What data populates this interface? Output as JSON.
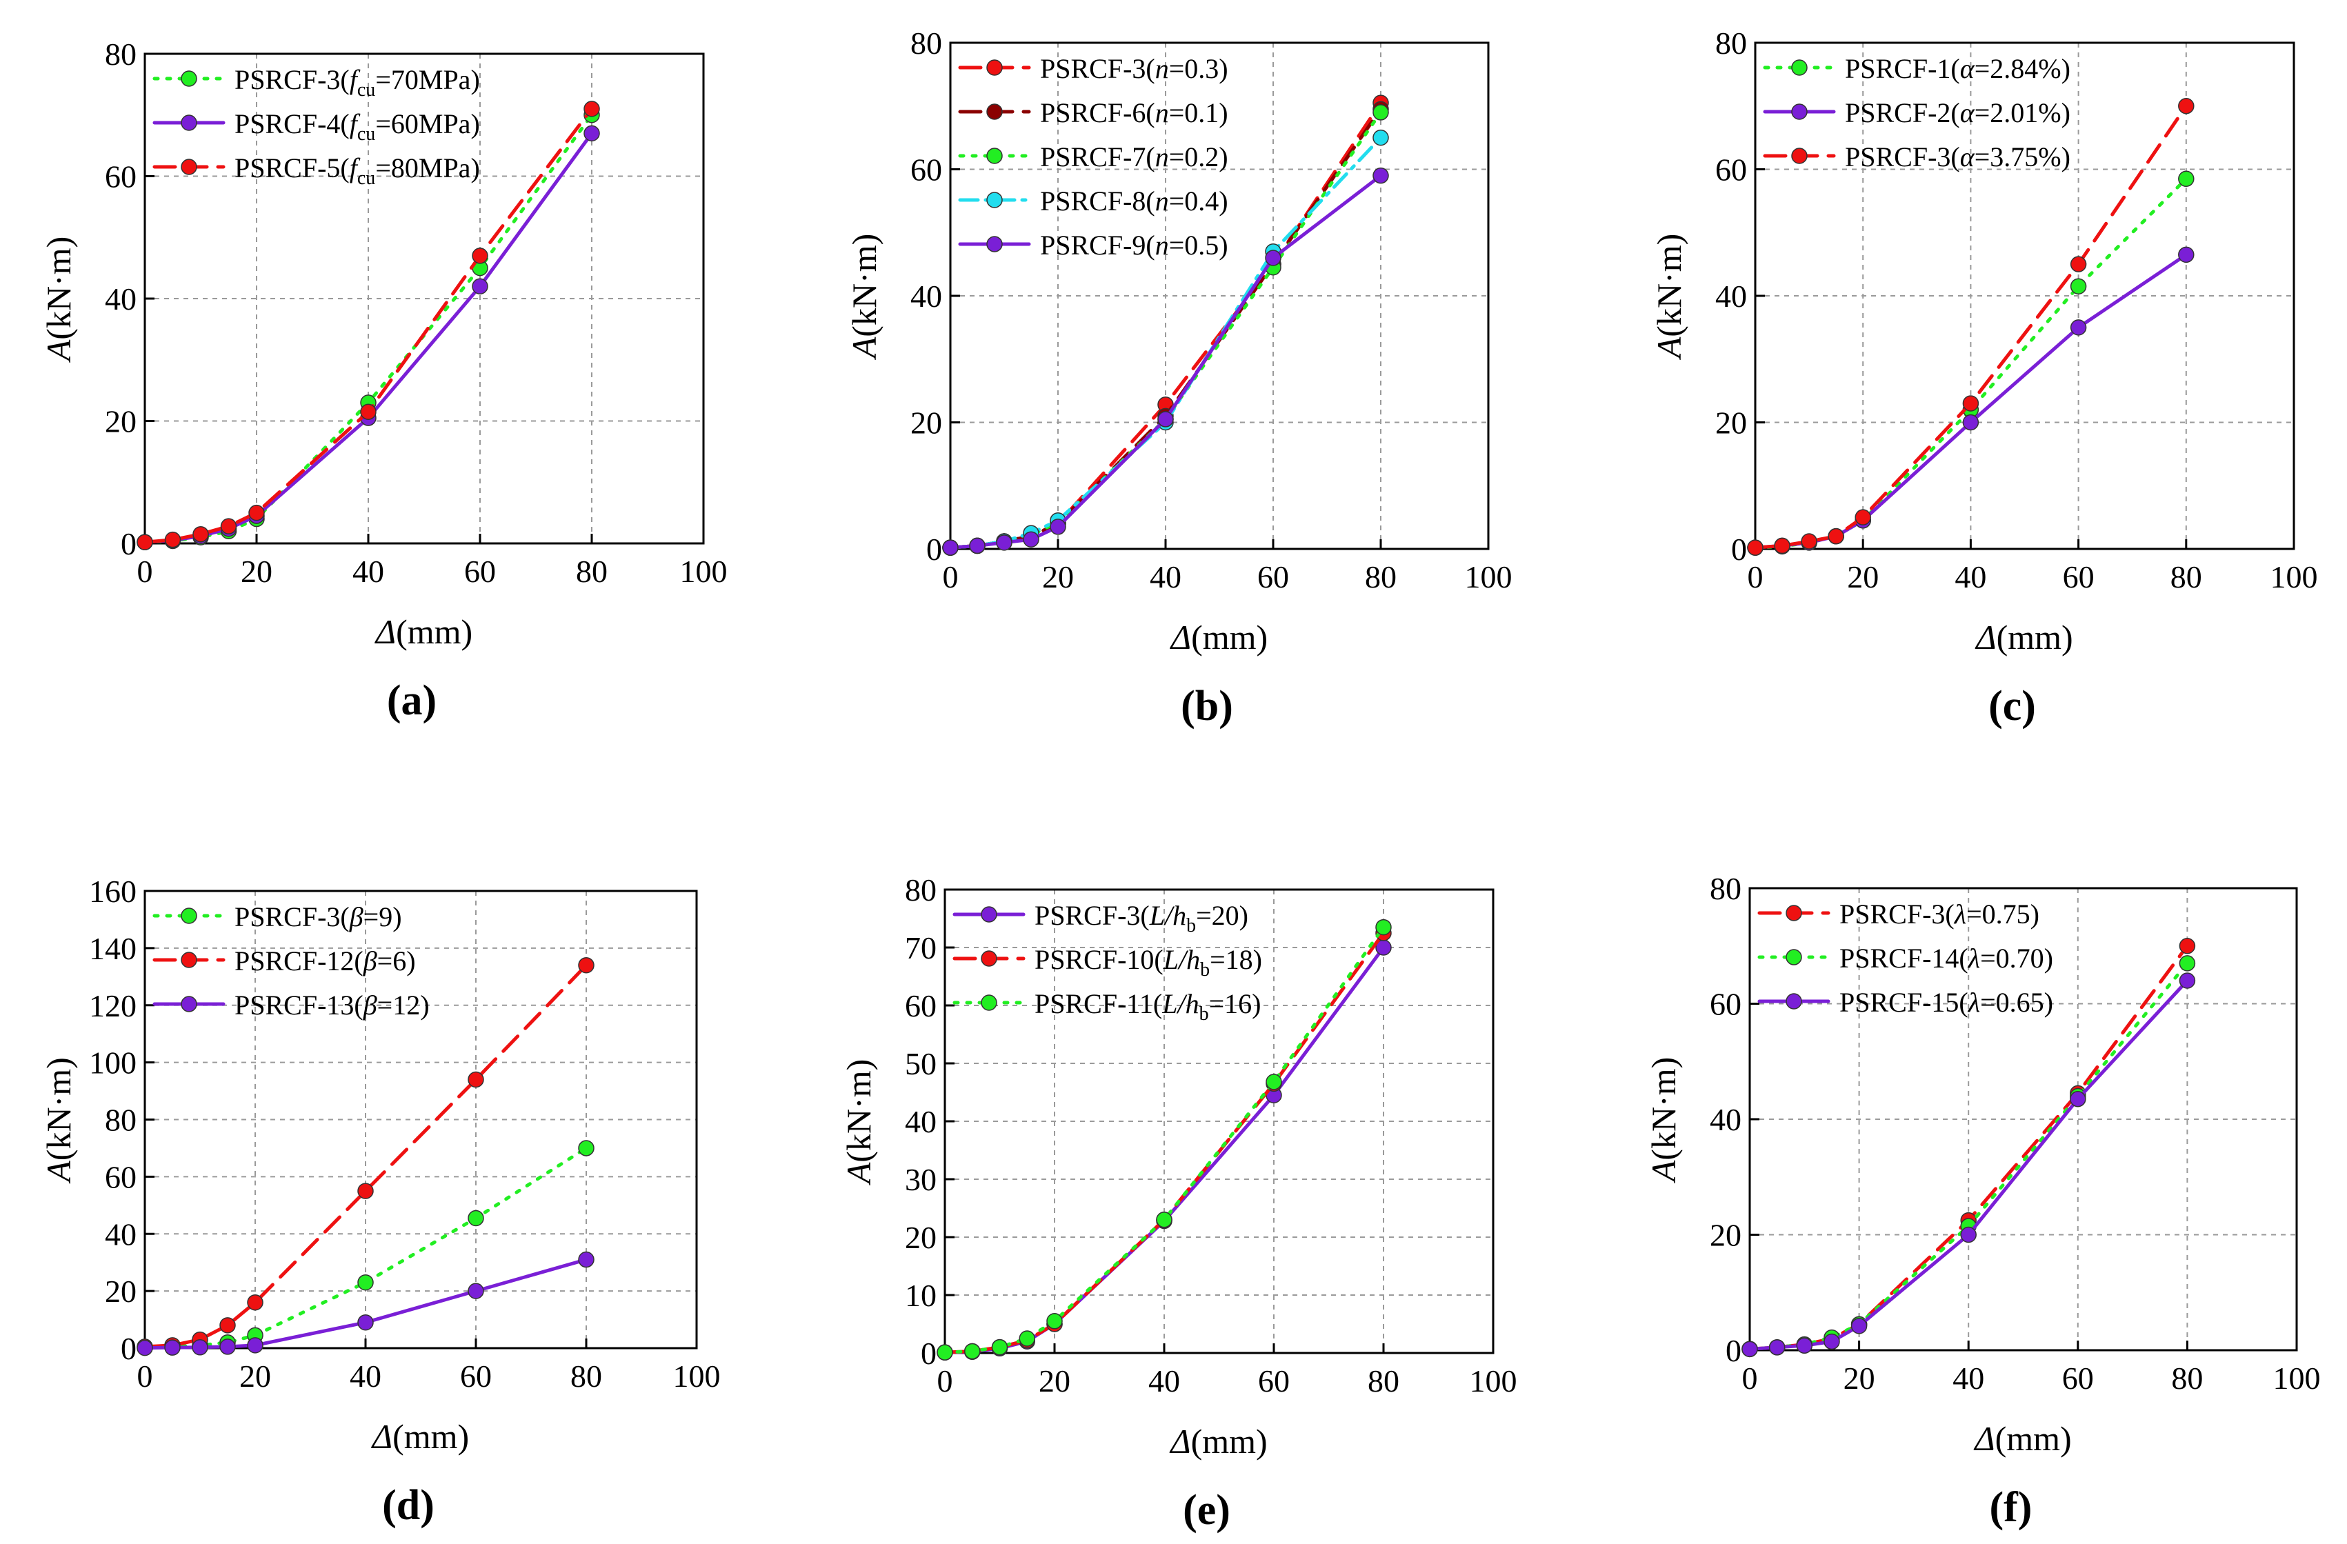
{
  "figure": {
    "x_axis_label": "Δ(mm)",
    "y_axis_label": "A(kN·m)",
    "y_axis_unit": "(kN·m)"
  },
  "chart_data": [
    {
      "panel": "(a)",
      "type": "line",
      "xlabel": "Δ(mm)",
      "ylabel": "A(kN·m)",
      "xlim": [
        0,
        100
      ],
      "ylim": [
        0,
        80
      ],
      "xticks": [
        0,
        20,
        40,
        60,
        80,
        100
      ],
      "yticks": [
        0,
        20,
        40,
        60,
        80
      ],
      "grid": true,
      "legend_position": "top-left",
      "x": [
        0,
        5,
        10,
        15,
        20,
        40,
        60,
        80
      ],
      "series": [
        {
          "name": "PSRCF-3(fcu=70MPa)",
          "legend_label": "PSRCF-3(",
          "legend_sym": "f",
          "legend_sub": "cu",
          "legend_rest": "=70MPa)",
          "color": "#22ee22",
          "dash": "dot",
          "values": [
            0.2,
            0.4,
            1.0,
            2.0,
            4.0,
            23.0,
            45.0,
            70.0
          ]
        },
        {
          "name": "PSRCF-4(fcu=60MPa)",
          "legend_label": "PSRCF-4(",
          "legend_sym": "f",
          "legend_sub": "cu",
          "legend_rest": "=60MPa)",
          "color": "#7a1fd6",
          "dash": "solid",
          "values": [
            0.2,
            0.5,
            1.2,
            2.4,
            4.5,
            20.5,
            42.0,
            67.0
          ]
        },
        {
          "name": "PSRCF-5(fcu=80MPa)",
          "legend_label": "PSRCF-5(",
          "legend_sym": "f",
          "legend_sub": "cu",
          "legend_rest": "=80MPa)",
          "color": "#ee1111",
          "dash": "dash",
          "values": [
            0.2,
            0.6,
            1.5,
            2.8,
            5.0,
            21.5,
            47.0,
            71.0
          ]
        }
      ]
    },
    {
      "panel": "(b)",
      "type": "line",
      "xlabel": "Δ(mm)",
      "ylabel": "A(kN·m)",
      "xlim": [
        0,
        100
      ],
      "ylim": [
        0,
        80
      ],
      "xticks": [
        0,
        20,
        40,
        60,
        80,
        100
      ],
      "yticks": [
        0,
        20,
        40,
        60,
        80
      ],
      "grid": true,
      "legend_position": "top-left",
      "x": [
        0,
        5,
        10,
        15,
        20,
        40,
        60,
        80
      ],
      "series": [
        {
          "name": "PSRCF-3(n=0.3)",
          "legend_label": "PSRCF-3(",
          "legend_sym": "n",
          "legend_sub": "",
          "legend_rest": "=0.3)",
          "color": "#ee1111",
          "dash": "dash",
          "values": [
            0.2,
            0.5,
            1.2,
            2.0,
            4.0,
            22.8,
            45.0,
            70.5
          ]
        },
        {
          "name": "PSRCF-6(n=0.1)",
          "legend_label": "PSRCF-6(",
          "legend_sym": "n",
          "legend_sub": "",
          "legend_rest": "=0.1)",
          "color": "#8b0000",
          "dash": "dash",
          "values": [
            0.2,
            0.5,
            1.2,
            2.0,
            4.0,
            21.0,
            45.0,
            69.5
          ]
        },
        {
          "name": "PSRCF-7(n=0.2)",
          "legend_label": "PSRCF-7(",
          "legend_sym": "n",
          "legend_sub": "",
          "legend_rest": "=0.2)",
          "color": "#22ee22",
          "dash": "dot",
          "values": [
            0.2,
            0.5,
            1.2,
            2.2,
            4.2,
            20.5,
            44.5,
            69.0
          ]
        },
        {
          "name": "PSRCF-8(n=0.4)",
          "legend_label": "PSRCF-8(",
          "legend_sym": "n",
          "legend_sub": "",
          "legend_rest": "=0.4)",
          "color": "#22ddee",
          "dash": "dashdot",
          "values": [
            0.2,
            0.5,
            1.2,
            2.5,
            4.5,
            20.0,
            47.0,
            65.0
          ]
        },
        {
          "name": "PSRCF-9(n=0.5)",
          "legend_label": "PSRCF-9(",
          "legend_sym": "n",
          "legend_sub": "",
          "legend_rest": "=0.5)",
          "color": "#7a1fd6",
          "dash": "solid",
          "values": [
            0.2,
            0.5,
            1.0,
            1.5,
            3.5,
            20.5,
            46.0,
            59.0
          ]
        }
      ]
    },
    {
      "panel": "(c)",
      "type": "line",
      "xlabel": "Δ(mm)",
      "ylabel": "A(kN·m)",
      "xlim": [
        0,
        100
      ],
      "ylim": [
        0,
        80
      ],
      "xticks": [
        0,
        20,
        40,
        60,
        80,
        100
      ],
      "yticks": [
        0,
        20,
        40,
        60,
        80
      ],
      "grid": true,
      "legend_position": "top-left",
      "x": [
        0,
        5,
        10,
        15,
        20,
        40,
        60,
        80
      ],
      "series": [
        {
          "name": "PSRCF-1(α=2.84%)",
          "legend_label": "PSRCF-1(",
          "legend_sym": "α",
          "legend_sub": "",
          "legend_rest": "=2.84%)",
          "color": "#22ee22",
          "dash": "dot",
          "values": [
            0.2,
            0.4,
            1.0,
            2.0,
            4.5,
            22.0,
            41.5,
            58.5
          ]
        },
        {
          "name": "PSRCF-2(α=2.01%)",
          "legend_label": "PSRCF-2(",
          "legend_sym": "α",
          "legend_sub": "",
          "legend_rest": "=2.01%)",
          "color": "#7a1fd6",
          "dash": "solid",
          "values": [
            0.2,
            0.5,
            1.0,
            2.0,
            4.5,
            20.0,
            35.0,
            46.5
          ]
        },
        {
          "name": "PSRCF-3(α=3.75%)",
          "legend_label": "PSRCF-3(",
          "legend_sym": "α",
          "legend_sub": "",
          "legend_rest": "=3.75%)",
          "color": "#ee1111",
          "dash": "dash",
          "values": [
            0.2,
            0.5,
            1.2,
            2.0,
            5.0,
            23.0,
            45.0,
            70.0
          ]
        }
      ]
    },
    {
      "panel": "(d)",
      "type": "line",
      "xlabel": "Δ(mm)",
      "ylabel": "A(kN·m)",
      "xlim": [
        0,
        100
      ],
      "ylim": [
        0,
        160
      ],
      "xticks": [
        0,
        20,
        40,
        60,
        80,
        100
      ],
      "yticks": [
        0,
        20,
        40,
        60,
        80,
        100,
        120,
        140,
        160
      ],
      "grid": true,
      "legend_position": "top-left",
      "x": [
        0,
        5,
        10,
        15,
        20,
        40,
        60,
        80
      ],
      "series": [
        {
          "name": "PSRCF-3(β=9)",
          "legend_label": "PSRCF-3(",
          "legend_sym": "β",
          "legend_sub": "",
          "legend_rest": "=9)",
          "color": "#22ee22",
          "dash": "dot",
          "values": [
            0.2,
            0.5,
            1.0,
            2.0,
            4.5,
            23.0,
            45.5,
            70.0
          ]
        },
        {
          "name": "PSRCF-12(β=6)",
          "legend_label": "PSRCF-12(",
          "legend_sym": "β",
          "legend_sub": "",
          "legend_rest": "=6)",
          "color": "#ee1111",
          "dash": "dash",
          "values": [
            0.5,
            1.0,
            3.0,
            8.0,
            16.0,
            55.0,
            94.0,
            134.0
          ]
        },
        {
          "name": "PSRCF-13(β=12)",
          "legend_label": "PSRCF-13(",
          "legend_sym": "β",
          "legend_sub": "",
          "legend_rest": "=12)",
          "color": "#7a1fd6",
          "dash": "solid",
          "values": [
            0.1,
            0.2,
            0.3,
            0.5,
            1.0,
            9.0,
            20.0,
            31.0
          ]
        }
      ]
    },
    {
      "panel": "(e)",
      "type": "line",
      "xlabel": "Δ(mm)",
      "ylabel": "A(kN·m)",
      "xlim": [
        0,
        100
      ],
      "ylim": [
        0,
        80
      ],
      "xticks": [
        0,
        20,
        40,
        60,
        80,
        100
      ],
      "yticks": [
        0,
        10,
        20,
        30,
        40,
        50,
        60,
        70,
        80
      ],
      "grid": true,
      "legend_position": "top-left",
      "x": [
        0,
        5,
        10,
        15,
        20,
        40,
        60,
        80
      ],
      "series": [
        {
          "name": "PSRCF-3(L/hb=20)",
          "legend_label": "PSRCF-3(",
          "legend_sym": "L/h",
          "legend_sub": "b",
          "legend_rest": "=20)",
          "color": "#7a1fd6",
          "dash": "solid",
          "values": [
            0.1,
            0.2,
            0.8,
            2.0,
            5.0,
            22.8,
            44.5,
            70.0
          ]
        },
        {
          "name": "PSRCF-10(L/hb=18)",
          "legend_label": "PSRCF-10(",
          "legend_sym": "L/h",
          "legend_sub": "b",
          "legend_rest": "=18)",
          "color": "#ee1111",
          "dash": "dash",
          "values": [
            0.1,
            0.3,
            1.0,
            2.2,
            5.0,
            23.0,
            46.5,
            72.5
          ]
        },
        {
          "name": "PSRCF-11(L/hb=16)",
          "legend_label": "PSRCF-11(",
          "legend_sym": "L/h",
          "legend_sub": "b",
          "legend_rest": "=16)",
          "color": "#22ee22",
          "dash": "dot",
          "values": [
            0.1,
            0.3,
            1.0,
            2.5,
            5.5,
            23.0,
            46.8,
            73.5
          ]
        }
      ]
    },
    {
      "panel": "(f)",
      "type": "line",
      "xlabel": "Δ(mm)",
      "ylabel": "A(kN·m)",
      "xlim": [
        0,
        100
      ],
      "ylim": [
        0,
        80
      ],
      "xticks": [
        0,
        20,
        40,
        60,
        80,
        100
      ],
      "yticks": [
        0,
        20,
        40,
        60,
        80
      ],
      "grid": true,
      "legend_position": "top-left",
      "x": [
        0,
        5,
        10,
        15,
        20,
        40,
        60,
        80
      ],
      "series": [
        {
          "name": "PSRCF-3(λ=0.75)",
          "legend_label": "PSRCF-3(",
          "legend_sym": "λ",
          "legend_sub": "",
          "legend_rest": "=0.75)",
          "color": "#ee1111",
          "dash": "dash",
          "values": [
            0.2,
            0.5,
            1.0,
            2.0,
            4.5,
            22.5,
            44.5,
            70.0
          ]
        },
        {
          "name": "PSRCF-14(λ=0.70)",
          "legend_label": "PSRCF-14(",
          "legend_sym": "λ",
          "legend_sub": "",
          "legend_rest": "=0.70)",
          "color": "#22ee22",
          "dash": "dot",
          "values": [
            0.2,
            0.5,
            1.0,
            2.2,
            4.5,
            21.5,
            44.0,
            67.0
          ]
        },
        {
          "name": "PSRCF-15(λ=0.65)",
          "legend_label": "PSRCF-15(",
          "legend_sym": "λ",
          "legend_sub": "",
          "legend_rest": "=0.65)",
          "color": "#7a1fd6",
          "dash": "solid",
          "values": [
            0.2,
            0.5,
            0.8,
            1.5,
            4.2,
            20.0,
            43.5,
            64.0
          ]
        }
      ]
    }
  ]
}
